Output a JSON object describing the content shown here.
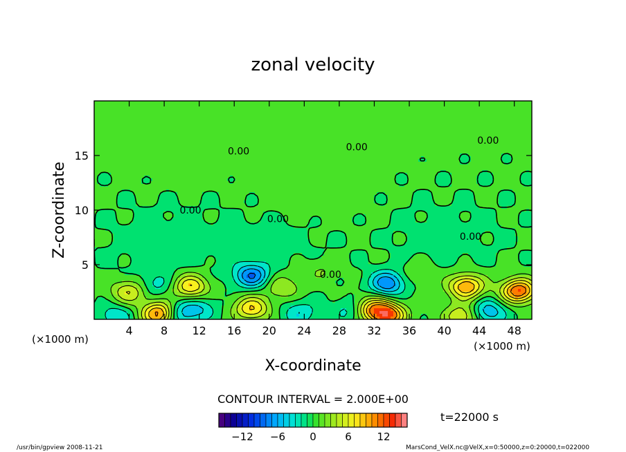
{
  "chart_data": {
    "type": "heatmap",
    "title": "zonal velocity",
    "xlabel": "X-coordinate",
    "ylabel": "Z-coordinate",
    "x_unit": "(×1000 m)",
    "xlim": [
      0,
      50
    ],
    "ylim": [
      0,
      20
    ],
    "x_ticks": [
      "4",
      "8",
      "12",
      "16",
      "20",
      "24",
      "28",
      "32",
      "36",
      "40",
      "44",
      "48"
    ],
    "y_ticks": [
      "5",
      "10",
      "15"
    ],
    "contour_labels": [
      "0.00",
      "0.00",
      "0.00",
      "0.00",
      "0.00",
      "0.00",
      "0.00"
    ],
    "contour_interval": "CONTOUR INTERVAL = 2.000E+00",
    "time_label": "t=22000 s",
    "colorbar": {
      "min": -16,
      "max": 16,
      "step": 2,
      "ticks": [
        "−12",
        "−6",
        "0",
        "6",
        "12"
      ]
    },
    "features": [
      {
        "x": 18.0,
        "z": 4.0,
        "value": -8
      },
      {
        "x": 33.5,
        "z": 3.3,
        "value": -8
      },
      {
        "x": 9.5,
        "z": 0.5,
        "value": -6
      },
      {
        "x": 2.5,
        "z": 0.3,
        "value": -4
      },
      {
        "x": 45.0,
        "z": 0.7,
        "value": -6
      },
      {
        "x": 12.0,
        "z": 1.0,
        "value": -4
      },
      {
        "x": 23.5,
        "z": 0.6,
        "value": -4
      },
      {
        "x": 29.5,
        "z": 0.8,
        "value": -4
      },
      {
        "x": 7.0,
        "z": 3.2,
        "value": -3
      },
      {
        "x": 4.0,
        "z": 2.5,
        "value": 6
      },
      {
        "x": 11.0,
        "z": 3.0,
        "value": 8
      },
      {
        "x": 18.0,
        "z": 1.0,
        "value": 8
      },
      {
        "x": 7.5,
        "z": 0.5,
        "value": 12
      },
      {
        "x": 31.5,
        "z": 1.0,
        "value": 8
      },
      {
        "x": 33.5,
        "z": 0.4,
        "value": 12
      },
      {
        "x": 42.5,
        "z": 3.0,
        "value": 10
      },
      {
        "x": 48.5,
        "z": 2.6,
        "value": 12
      },
      {
        "x": 42.0,
        "z": 0.3,
        "value": 6
      },
      {
        "x": 21.5,
        "z": 3.0,
        "value": 4
      },
      {
        "x": 26.0,
        "z": 4.5,
        "value": 2
      },
      {
        "x": 37.0,
        "z": 4.2,
        "value": 2
      },
      {
        "x": 25.0,
        "z": 12.0,
        "value": 1.2
      },
      {
        "x": 10.0,
        "z": 16.0,
        "value": 1.0
      },
      {
        "x": 33.0,
        "z": 19.0,
        "value": 1.0
      },
      {
        "x": 8.0,
        "z": 7.0,
        "value": -1.2
      },
      {
        "x": 20.0,
        "z": 7.0,
        "value": -1.0
      },
      {
        "x": 40.0,
        "z": 7.5,
        "value": -1.0
      }
    ]
  },
  "footer": {
    "left": "/usr/bin/gpview   2008-11-21",
    "right": "MarsCond_VelX.nc@VelX,x=0:50000,z=0:20000,t=022000"
  }
}
